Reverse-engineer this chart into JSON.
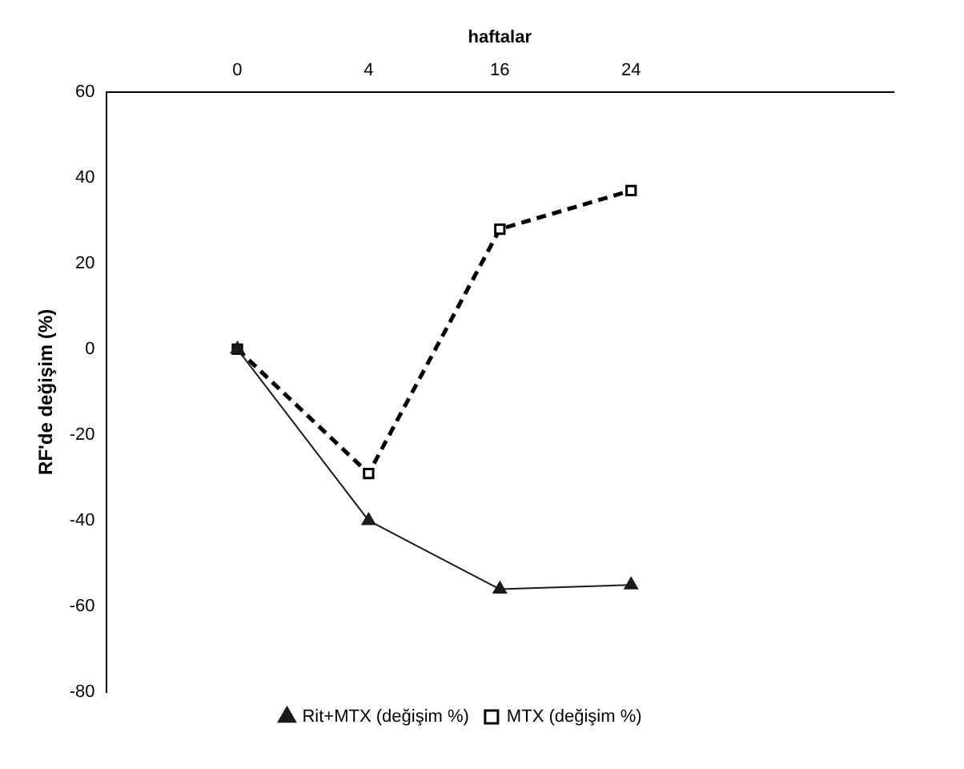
{
  "chart_data": {
    "type": "line",
    "xlabel": "haftalar",
    "ylabel": "RF'de değişim (%)",
    "categories": [
      null,
      "0",
      "4",
      "16",
      "24",
      null,
      null
    ],
    "series": [
      {
        "name": "Rit+MTX (değişim %)",
        "color": "#1a1a1a",
        "marker": "triangle",
        "line_style": "solid",
        "values": [
          null,
          0,
          -40,
          -56,
          -55,
          null,
          null
        ]
      },
      {
        "name": "MTX (değişim %)",
        "color": "#000000",
        "marker": "square",
        "line_style": "dashed",
        "values": [
          null,
          0,
          -29,
          28,
          37,
          null,
          null
        ]
      }
    ],
    "ylim": [
      -80,
      60
    ],
    "yticks": [
      -80,
      -60,
      -40,
      -20,
      0,
      20,
      40,
      60
    ],
    "grid": false,
    "legend": "bottom"
  }
}
